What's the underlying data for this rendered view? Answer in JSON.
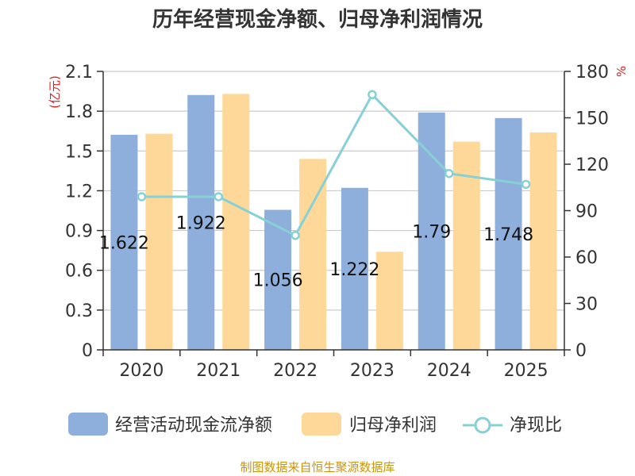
{
  "chart_data": {
    "type": "bar",
    "title": "历年经营现金净额、归母净利润情况",
    "categories": [
      "2020",
      "2021",
      "2022",
      "2023",
      "2024",
      "2025"
    ],
    "series": [
      {
        "name": "经营活动现金流净额",
        "type": "bar",
        "axis": "left",
        "color": "#8eaedb",
        "values": [
          1.622,
          1.922,
          1.056,
          1.222,
          1.79,
          1.748
        ],
        "data_labels": [
          "1.622",
          "1.922",
          "1.056",
          "1.222",
          "1.79",
          "1.748"
        ]
      },
      {
        "name": "归母净利润",
        "type": "bar",
        "axis": "left",
        "color": "#fed899",
        "values": [
          1.63,
          1.93,
          1.44,
          0.74,
          1.57,
          1.64
        ]
      },
      {
        "name": "净现比",
        "type": "line",
        "axis": "right",
        "color": "#87d0d6",
        "values": [
          99,
          99,
          74,
          165,
          114,
          107
        ]
      }
    ],
    "y_left": {
      "label": "(亿元)",
      "min": 0,
      "max": 2.1,
      "ticks": [
        "0",
        "0.3",
        "0.6",
        "0.9",
        "1.2",
        "1.5",
        "1.8",
        "2.1"
      ]
    },
    "y_right": {
      "label": "%",
      "min": 0,
      "max": 180,
      "ticks": [
        "0",
        "30",
        "60",
        "90",
        "120",
        "150",
        "180"
      ]
    },
    "legend_position": "bottom",
    "grid": true
  },
  "footer": {
    "source": "制图数据来自恒生聚源数据库"
  }
}
